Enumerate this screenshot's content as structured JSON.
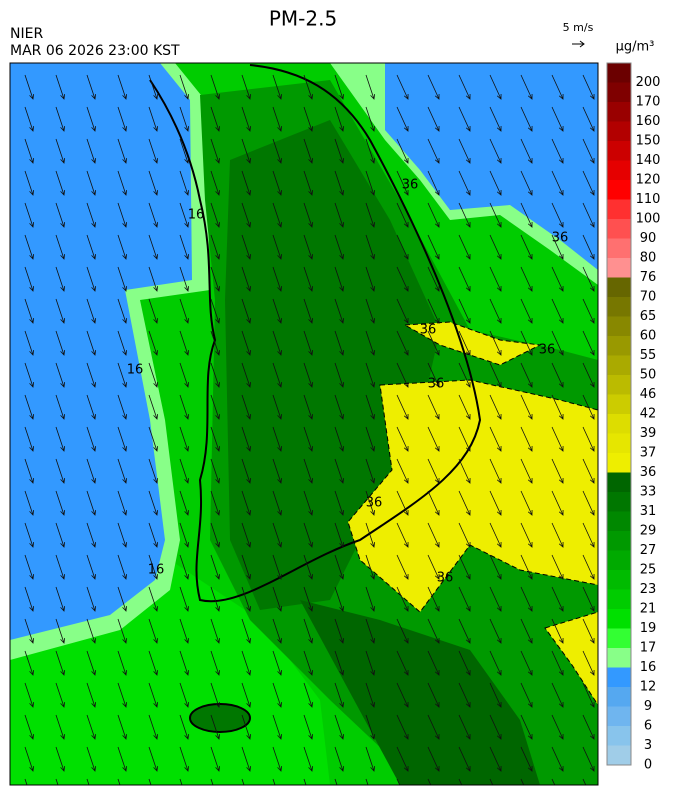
{
  "header": {
    "title": "PM-2.5",
    "agency": "NIER",
    "timestamp": "MAR 06 2026 23:00 KST",
    "wind_scale": "5 m/s",
    "unit": "μg/m³"
  },
  "colorbar": {
    "labels": [
      "200",
      "170",
      "160",
      "150",
      "140",
      "120",
      "110",
      "100",
      "90",
      "80",
      "76",
      "70",
      "65",
      "60",
      "55",
      "50",
      "46",
      "42",
      "39",
      "37",
      "36",
      "33",
      "31",
      "29",
      "27",
      "25",
      "23",
      "21",
      "19",
      "17",
      "16",
      "12",
      "9",
      "6",
      "3",
      "0"
    ],
    "colors": [
      "#6b0000",
      "#7f0000",
      "#990000",
      "#b20000",
      "#cc0000",
      "#e50000",
      "#ff0000",
      "#ff3030",
      "#ff5050",
      "#ff7070",
      "#ff9090",
      "#666600",
      "#777700",
      "#888800",
      "#999900",
      "#aaaa00",
      "#bbbb00",
      "#cccc00",
      "#dddd00",
      "#e6e600",
      "#eeee00",
      "#006600",
      "#007700",
      "#008800",
      "#009900",
      "#00aa00",
      "#00bb00",
      "#00cc00",
      "#00e000",
      "#33ff33",
      "#88ff88",
      "#3399ff",
      "#55a8f0",
      "#6fb5ef",
      "#88c4ec",
      "#a0cde8"
    ]
  },
  "contour_labels": [
    "16",
    "16",
    "16",
    "36",
    "36",
    "36",
    "36",
    "36",
    "36",
    "36"
  ]
}
